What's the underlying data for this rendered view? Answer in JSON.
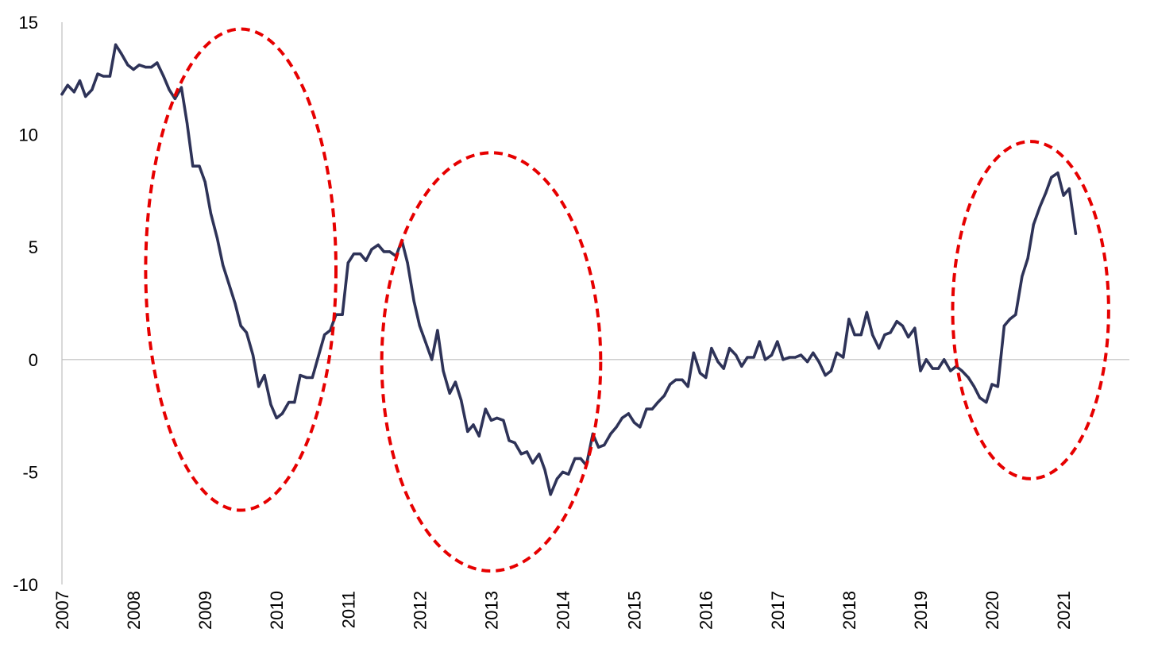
{
  "chart_data": {
    "type": "line",
    "title": "",
    "xlabel": "",
    "ylabel": "",
    "xlim": [
      2007.0,
      2021.92
    ],
    "ylim": [
      -10,
      15
    ],
    "yticks": [
      {
        "value": 15,
        "label": "15"
      },
      {
        "value": 10,
        "label": "10"
      },
      {
        "value": 5,
        "label": "5"
      },
      {
        "value": 0,
        "label": "0"
      },
      {
        "value": -5,
        "label": "-5"
      },
      {
        "value": -10,
        "label": "-10"
      }
    ],
    "xticks": [
      {
        "value": 2007,
        "label": "2007"
      },
      {
        "value": 2008,
        "label": "2008"
      },
      {
        "value": 2009,
        "label": "2009"
      },
      {
        "value": 2010,
        "label": "2010"
      },
      {
        "value": 2011,
        "label": "2011"
      },
      {
        "value": 2012,
        "label": "2012"
      },
      {
        "value": 2013,
        "label": "2013"
      },
      {
        "value": 2014,
        "label": "2014"
      },
      {
        "value": 2015,
        "label": "2015"
      },
      {
        "value": 2016,
        "label": "2016"
      },
      {
        "value": 2017,
        "label": "2017"
      },
      {
        "value": 2018,
        "label": "2018"
      },
      {
        "value": 2019,
        "label": "2019"
      },
      {
        "value": 2020,
        "label": "2020"
      },
      {
        "value": 2021,
        "label": "2021"
      }
    ],
    "grid": false,
    "legend": "none",
    "series": [
      {
        "color": "#2e3358",
        "points": [
          [
            2007.0,
            11.8
          ],
          [
            2007.08,
            12.2
          ],
          [
            2007.17,
            11.9
          ],
          [
            2007.25,
            12.4
          ],
          [
            2007.33,
            11.7
          ],
          [
            2007.42,
            12.0
          ],
          [
            2007.5,
            12.7
          ],
          [
            2007.58,
            12.6
          ],
          [
            2007.67,
            12.6
          ],
          [
            2007.75,
            14.0
          ],
          [
            2007.83,
            13.6
          ],
          [
            2007.92,
            13.1
          ],
          [
            2008.0,
            12.9
          ],
          [
            2008.08,
            13.1
          ],
          [
            2008.17,
            13.0
          ],
          [
            2008.25,
            13.0
          ],
          [
            2008.33,
            13.2
          ],
          [
            2008.42,
            12.6
          ],
          [
            2008.5,
            12.0
          ],
          [
            2008.58,
            11.6
          ],
          [
            2008.67,
            12.1
          ],
          [
            2008.75,
            10.5
          ],
          [
            2008.83,
            8.6
          ],
          [
            2008.92,
            8.6
          ],
          [
            2009.0,
            7.9
          ],
          [
            2009.08,
            6.5
          ],
          [
            2009.17,
            5.4
          ],
          [
            2009.25,
            4.2
          ],
          [
            2009.33,
            3.4
          ],
          [
            2009.42,
            2.5
          ],
          [
            2009.5,
            1.5
          ],
          [
            2009.58,
            1.2
          ],
          [
            2009.67,
            0.2
          ],
          [
            2009.75,
            -1.2
          ],
          [
            2009.83,
            -0.7
          ],
          [
            2009.92,
            -2.0
          ],
          [
            2010.0,
            -2.6
          ],
          [
            2010.08,
            -2.4
          ],
          [
            2010.17,
            -1.9
          ],
          [
            2010.25,
            -1.9
          ],
          [
            2010.33,
            -0.7
          ],
          [
            2010.42,
            -0.8
          ],
          [
            2010.5,
            -0.8
          ],
          [
            2010.58,
            0.1
          ],
          [
            2010.67,
            1.1
          ],
          [
            2010.75,
            1.3
          ],
          [
            2010.83,
            2.0
          ],
          [
            2010.92,
            2.0
          ],
          [
            2011.0,
            4.3
          ],
          [
            2011.08,
            4.7
          ],
          [
            2011.17,
            4.7
          ],
          [
            2011.25,
            4.4
          ],
          [
            2011.33,
            4.9
          ],
          [
            2011.42,
            5.1
          ],
          [
            2011.5,
            4.8
          ],
          [
            2011.58,
            4.8
          ],
          [
            2011.67,
            4.6
          ],
          [
            2011.75,
            5.3
          ],
          [
            2011.83,
            4.3
          ],
          [
            2011.92,
            2.6
          ],
          [
            2012.0,
            1.5
          ],
          [
            2012.08,
            0.8
          ],
          [
            2012.17,
            0.0
          ],
          [
            2012.25,
            1.3
          ],
          [
            2012.33,
            -0.5
          ],
          [
            2012.42,
            -1.5
          ],
          [
            2012.5,
            -1.0
          ],
          [
            2012.58,
            -1.8
          ],
          [
            2012.67,
            -3.2
          ],
          [
            2012.75,
            -2.9
          ],
          [
            2012.83,
            -3.4
          ],
          [
            2012.92,
            -2.2
          ],
          [
            2013.0,
            -2.7
          ],
          [
            2013.08,
            -2.6
          ],
          [
            2013.17,
            -2.7
          ],
          [
            2013.25,
            -3.6
          ],
          [
            2013.33,
            -3.7
          ],
          [
            2013.42,
            -4.2
          ],
          [
            2013.5,
            -4.1
          ],
          [
            2013.58,
            -4.6
          ],
          [
            2013.67,
            -4.2
          ],
          [
            2013.75,
            -4.9
          ],
          [
            2013.83,
            -6.0
          ],
          [
            2013.92,
            -5.3
          ],
          [
            2014.0,
            -5.0
          ],
          [
            2014.08,
            -5.1
          ],
          [
            2014.17,
            -4.4
          ],
          [
            2014.25,
            -4.4
          ],
          [
            2014.33,
            -4.7
          ],
          [
            2014.42,
            -3.3
          ],
          [
            2014.5,
            -3.9
          ],
          [
            2014.58,
            -3.8
          ],
          [
            2014.67,
            -3.3
          ],
          [
            2014.75,
            -3.0
          ],
          [
            2014.83,
            -2.6
          ],
          [
            2014.92,
            -2.4
          ],
          [
            2015.0,
            -2.8
          ],
          [
            2015.08,
            -3.0
          ],
          [
            2015.17,
            -2.2
          ],
          [
            2015.25,
            -2.2
          ],
          [
            2015.33,
            -1.9
          ],
          [
            2015.42,
            -1.6
          ],
          [
            2015.5,
            -1.1
          ],
          [
            2015.58,
            -0.9
          ],
          [
            2015.67,
            -0.9
          ],
          [
            2015.75,
            -1.2
          ],
          [
            2015.83,
            0.3
          ],
          [
            2015.92,
            -0.6
          ],
          [
            2016.0,
            -0.8
          ],
          [
            2016.08,
            0.5
          ],
          [
            2016.17,
            -0.1
          ],
          [
            2016.25,
            -0.4
          ],
          [
            2016.33,
            0.5
          ],
          [
            2016.42,
            0.2
          ],
          [
            2016.5,
            -0.3
          ],
          [
            2016.58,
            0.1
          ],
          [
            2016.67,
            0.1
          ],
          [
            2016.75,
            0.8
          ],
          [
            2016.83,
            0.0
          ],
          [
            2016.92,
            0.2
          ],
          [
            2017.0,
            0.8
          ],
          [
            2017.08,
            0.0
          ],
          [
            2017.17,
            0.1
          ],
          [
            2017.25,
            0.1
          ],
          [
            2017.33,
            0.2
          ],
          [
            2017.42,
            -0.1
          ],
          [
            2017.5,
            0.3
          ],
          [
            2017.58,
            -0.1
          ],
          [
            2017.67,
            -0.7
          ],
          [
            2017.75,
            -0.5
          ],
          [
            2017.83,
            0.3
          ],
          [
            2017.92,
            0.1
          ],
          [
            2018.0,
            1.8
          ],
          [
            2018.08,
            1.1
          ],
          [
            2018.17,
            1.1
          ],
          [
            2018.25,
            2.1
          ],
          [
            2018.33,
            1.1
          ],
          [
            2018.42,
            0.5
          ],
          [
            2018.5,
            1.1
          ],
          [
            2018.58,
            1.2
          ],
          [
            2018.67,
            1.7
          ],
          [
            2018.75,
            1.5
          ],
          [
            2018.83,
            1.0
          ],
          [
            2018.92,
            1.4
          ],
          [
            2019.0,
            -0.5
          ],
          [
            2019.08,
            0.0
          ],
          [
            2019.17,
            -0.4
          ],
          [
            2019.25,
            -0.4
          ],
          [
            2019.33,
            0.0
          ],
          [
            2019.42,
            -0.5
          ],
          [
            2019.5,
            -0.3
          ],
          [
            2019.58,
            -0.5
          ],
          [
            2019.67,
            -0.8
          ],
          [
            2019.75,
            -1.2
          ],
          [
            2019.83,
            -1.7
          ],
          [
            2019.92,
            -1.9
          ],
          [
            2020.0,
            -1.1
          ],
          [
            2020.08,
            -1.2
          ],
          [
            2020.17,
            1.5
          ],
          [
            2020.25,
            1.8
          ],
          [
            2020.33,
            2.0
          ],
          [
            2020.42,
            3.7
          ],
          [
            2020.5,
            4.5
          ],
          [
            2020.58,
            6.0
          ],
          [
            2020.67,
            6.8
          ],
          [
            2020.75,
            7.4
          ],
          [
            2020.83,
            8.1
          ],
          [
            2020.92,
            8.3
          ],
          [
            2021.0,
            7.3
          ],
          [
            2021.08,
            7.6
          ],
          [
            2021.17,
            5.6
          ]
        ]
      }
    ],
    "annotations": [
      {
        "type": "ellipse",
        "color": "#e60000",
        "style": "dashed",
        "center": [
          2009.5,
          4.0
        ],
        "radius": [
          1.33,
          10.7
        ]
      },
      {
        "type": "ellipse",
        "color": "#e60000",
        "style": "dashed",
        "center": [
          2013.0,
          -0.1
        ],
        "radius": [
          1.53,
          9.3
        ]
      },
      {
        "type": "ellipse",
        "color": "#e60000",
        "style": "dashed",
        "center": [
          2020.54,
          2.2
        ],
        "radius": [
          1.09,
          7.5
        ]
      }
    ]
  }
}
